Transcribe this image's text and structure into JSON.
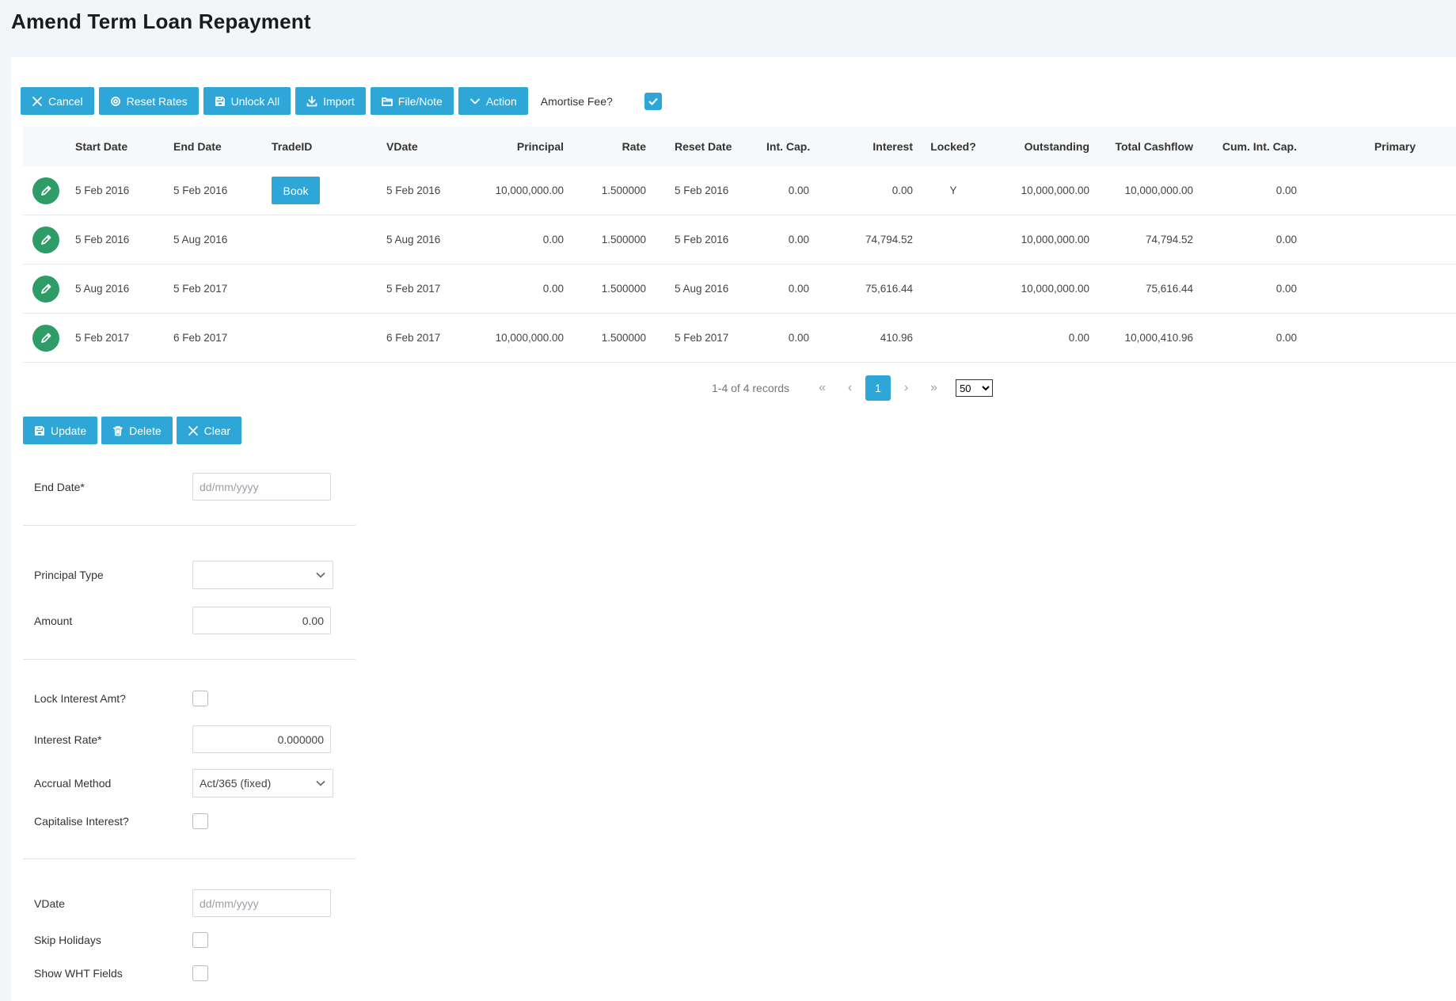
{
  "page": {
    "title": "Amend Term Loan Repayment"
  },
  "toolbar": {
    "cancel": "Cancel",
    "reset_rates": "Reset Rates",
    "unlock_all": "Unlock All",
    "import": "Import",
    "file_note": "File/Note",
    "action": "Action",
    "amortise_label": "Amortise Fee?",
    "amortise_checked": true
  },
  "grid": {
    "columns": [
      "",
      "Start Date",
      "End Date",
      "TradeID",
      "VDate",
      "Principal",
      "Rate",
      "Reset Date",
      "Int. Cap.",
      "Interest",
      "Locked?",
      "Outstanding",
      "Total Cashflow",
      "Cum. Int. Cap.",
      "Primary"
    ],
    "rows": [
      {
        "start": "5 Feb 2016",
        "end": "5 Feb 2016",
        "trade": "Book",
        "vdate": "5 Feb 2016",
        "principal": "10,000,000.00",
        "rate": "1.500000",
        "reset": "5 Feb 2016",
        "intcap": "0.00",
        "interest": "0.00",
        "locked": "Y",
        "outstanding": "10,000,000.00",
        "total": "10,000,000.00",
        "cumintcap": "0.00",
        "primary": ""
      },
      {
        "start": "5 Feb 2016",
        "end": "5 Aug 2016",
        "trade": "",
        "vdate": "5 Aug 2016",
        "principal": "0.00",
        "rate": "1.500000",
        "reset": "5 Feb 2016",
        "intcap": "0.00",
        "interest": "74,794.52",
        "locked": "",
        "outstanding": "10,000,000.00",
        "total": "74,794.52",
        "cumintcap": "0.00",
        "primary": ""
      },
      {
        "start": "5 Aug 2016",
        "end": "5 Feb 2017",
        "trade": "",
        "vdate": "5 Feb 2017",
        "principal": "0.00",
        "rate": "1.500000",
        "reset": "5 Aug 2016",
        "intcap": "0.00",
        "interest": "75,616.44",
        "locked": "",
        "outstanding": "10,000,000.00",
        "total": "75,616.44",
        "cumintcap": "0.00",
        "primary": ""
      },
      {
        "start": "5 Feb 2017",
        "end": "6 Feb 2017",
        "trade": "",
        "vdate": "6 Feb 2017",
        "principal": "10,000,000.00",
        "rate": "1.500000",
        "reset": "5 Feb 2017",
        "intcap": "0.00",
        "interest": "410.96",
        "locked": "",
        "outstanding": "0.00",
        "total": "10,000,410.96",
        "cumintcap": "0.00",
        "primary": ""
      }
    ]
  },
  "pager": {
    "info": "1-4 of 4 records",
    "first": "«",
    "prev": "‹",
    "current": "1",
    "next": "›",
    "last": "»",
    "page_size": "50"
  },
  "form_actions": {
    "update": "Update",
    "delete": "Delete",
    "clear": "Clear"
  },
  "form": {
    "end_date_label": "End Date*",
    "end_date_placeholder": "dd/mm/yyyy",
    "principal_type_label": "Principal Type",
    "principal_type_value": "",
    "amount_label": "Amount",
    "amount_value": "0.00",
    "lock_interest_label": "Lock Interest Amt?",
    "interest_rate_label": "Interest Rate*",
    "interest_rate_value": "0.000000",
    "accrual_method_label": "Accrual Method",
    "accrual_method_value": "Act/365 (fixed)",
    "capitalise_label": "Capitalise Interest?",
    "vdate_label": "VDate",
    "vdate_placeholder": "dd/mm/yyyy",
    "skip_holidays_label": "Skip Holidays",
    "show_wht_label": "Show WHT Fields"
  },
  "colors": {
    "accent": "#2ea7d8",
    "edit": "#2e9c66"
  }
}
